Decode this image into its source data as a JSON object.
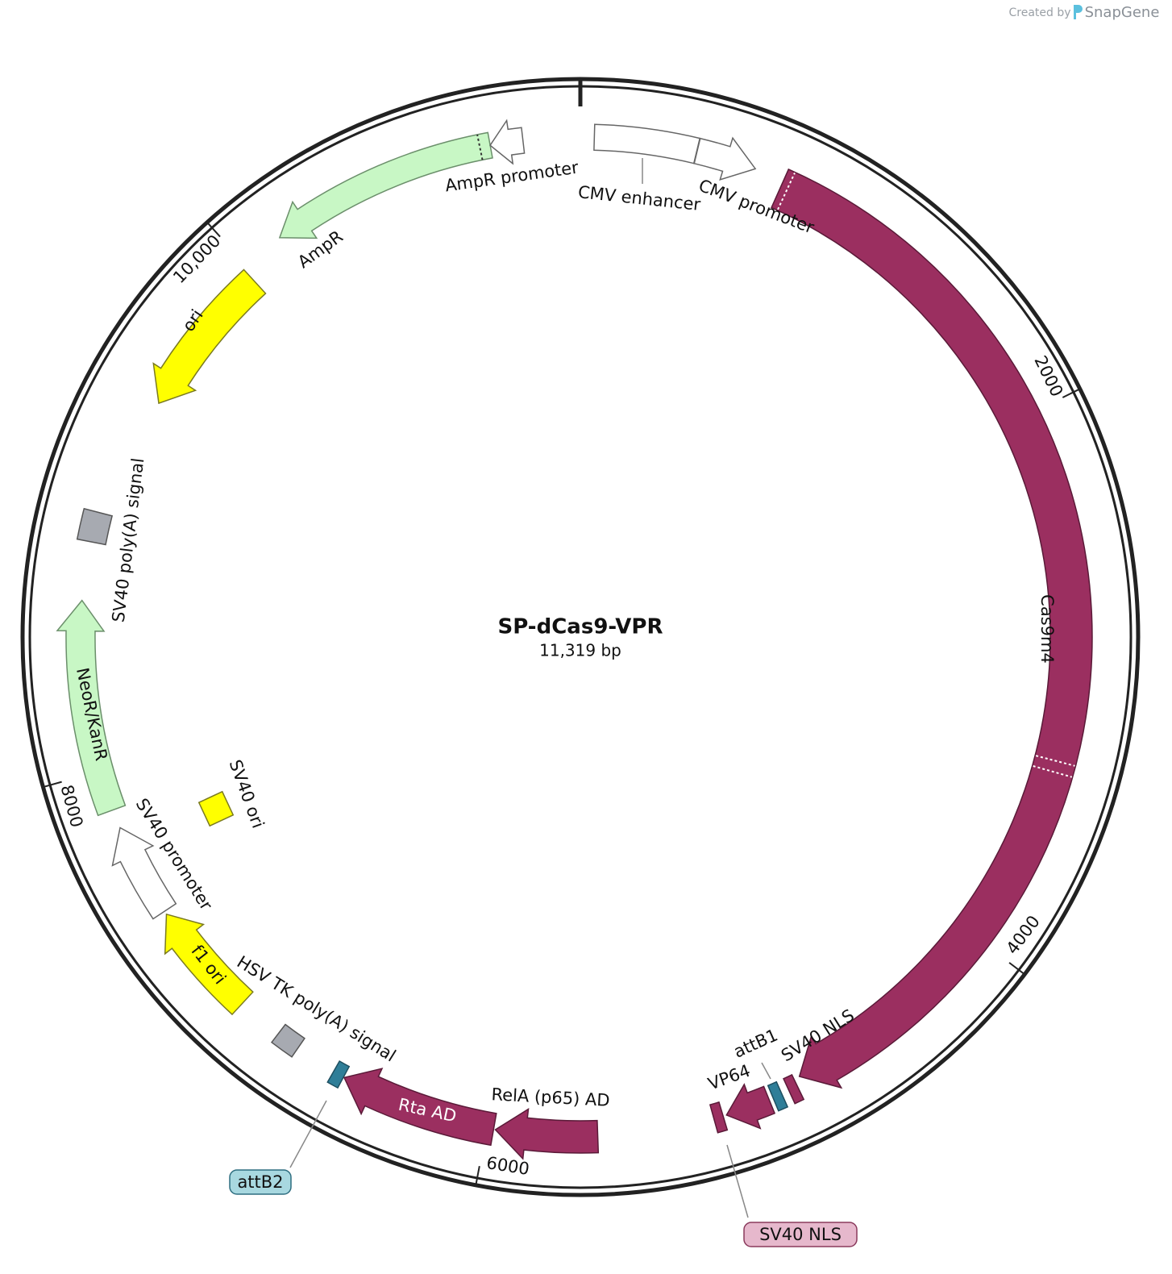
{
  "header": {
    "credit_prefix": "Created by",
    "credit_brand": "SnapGene"
  },
  "plasmid": {
    "name": "SP-dCas9-VPR",
    "length": "11,319 bp"
  },
  "ticks": [
    "2000",
    "4000",
    "6000",
    "8000",
    "10,000"
  ],
  "features": [
    {
      "label": "Cas9m4"
    },
    {
      "label": "CMV enhancer"
    },
    {
      "label": "CMV promoter"
    },
    {
      "label": "AmpR promoter"
    },
    {
      "label": "AmpR"
    },
    {
      "label": "ori"
    },
    {
      "label": "SV40 poly(A) signal"
    },
    {
      "label": "NeoR/KanR"
    },
    {
      "label": "SV40 promoter"
    },
    {
      "label": "SV40 ori"
    },
    {
      "label": "f1 ori"
    },
    {
      "label": "HSV TK poly(A) signal"
    },
    {
      "label": "Rta AD"
    },
    {
      "label": "RelA (p65) AD"
    },
    {
      "label": "VP64"
    },
    {
      "label": "attB1"
    },
    {
      "label": "SV40 NLS"
    }
  ],
  "callouts": [
    {
      "label": "attB2"
    },
    {
      "label": "SV40 NLS"
    }
  ]
}
